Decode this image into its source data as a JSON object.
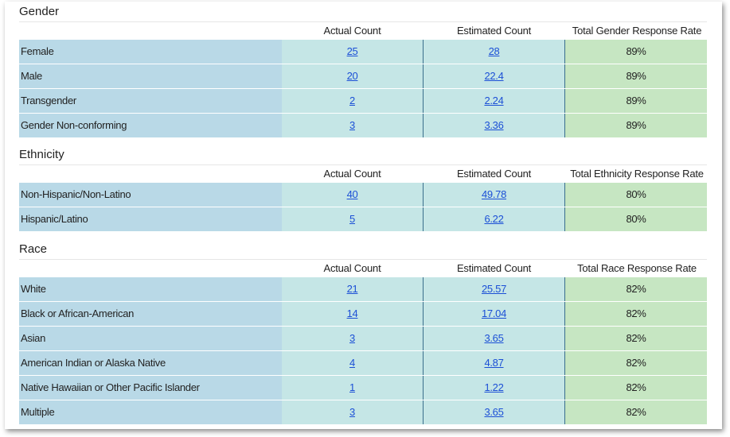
{
  "sections": {
    "gender": {
      "title": "Gender",
      "headers": {
        "actual": "Actual Count",
        "estimated": "Estimated Count",
        "rate": "Total Gender Response Rate"
      },
      "rows": [
        {
          "label": "Female",
          "actual": "25",
          "estimated": "28",
          "rate": "89%"
        },
        {
          "label": "Male",
          "actual": "20",
          "estimated": "22.4",
          "rate": "89%"
        },
        {
          "label": "Transgender",
          "actual": "2",
          "estimated": "2.24",
          "rate": "89%"
        },
        {
          "label": "Gender Non-conforming",
          "actual": "3",
          "estimated": "3.36",
          "rate": "89%"
        }
      ]
    },
    "ethnicity": {
      "title": "Ethnicity",
      "headers": {
        "actual": "Actual Count",
        "estimated": "Estimated Count",
        "rate": "Total Ethnicity Response Rate"
      },
      "rows": [
        {
          "label": "Non-Hispanic/Non-Latino",
          "actual": "40",
          "estimated": "49.78",
          "rate": "80%"
        },
        {
          "label": "Hispanic/Latino",
          "actual": "5",
          "estimated": "6.22",
          "rate": "80%"
        }
      ]
    },
    "race": {
      "title": "Race",
      "headers": {
        "actual": "Actual Count",
        "estimated": "Estimated Count",
        "rate": "Total Race Response Rate"
      },
      "rows": [
        {
          "label": "White",
          "actual": "21",
          "estimated": "25.57",
          "rate": "82%"
        },
        {
          "label": "Black or African-American",
          "actual": "14",
          "estimated": "17.04",
          "rate": "82%"
        },
        {
          "label": "Asian",
          "actual": "3",
          "estimated": "3.65",
          "rate": "82%"
        },
        {
          "label": "American Indian or Alaska Native",
          "actual": "4",
          "estimated": "4.87",
          "rate": "82%"
        },
        {
          "label": "Native Hawaiian or Other Pacific Islander",
          "actual": "1",
          "estimated": "1.22",
          "rate": "82%"
        },
        {
          "label": "Multiple",
          "actual": "3",
          "estimated": "3.65",
          "rate": "82%"
        }
      ]
    }
  },
  "colors": {
    "label_bg": "#b9d9e7",
    "count_bg": "#c5e6e6",
    "rate_bg": "#c6e6c2",
    "link": "#1b4fd6",
    "divider": "#3a6e8c"
  }
}
